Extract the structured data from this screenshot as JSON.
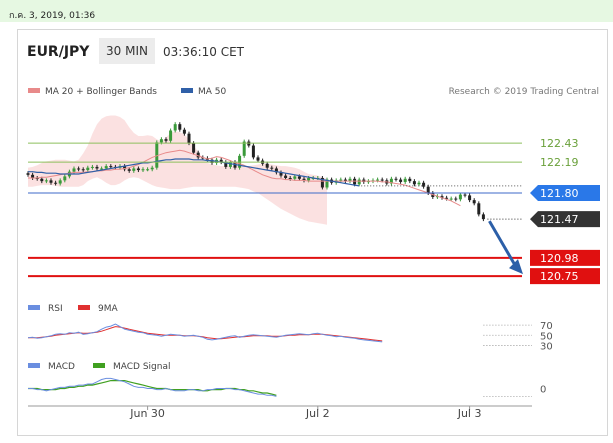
{
  "top_bar": {
    "date_text": "ก.ค. 3, 2019, 01:36"
  },
  "header": {
    "symbol": "EUR/JPY",
    "timeframe": "30 MIN",
    "time": "03:36:10 CET"
  },
  "legend": {
    "ma20_label": "MA 20 + Bollinger Bands",
    "ma50_label": "MA 50",
    "research": "Research © 2019 Trading Central",
    "ma20_color": "#e88a8a",
    "ma50_color": "#3060a8"
  },
  "rsi_legend": {
    "rsi": "RSI",
    "ma": "9MA",
    "rsi_color": "#6a8ee0",
    "ma_color": "#e03030"
  },
  "macd_legend": {
    "macd": "MACD",
    "signal": "MACD Signal",
    "macd_color": "#6a8ee0",
    "signal_color": "#40a020"
  },
  "chart_data": [
    {
      "type": "line",
      "subtype": "candlestick",
      "title": "EUR/JPY",
      "ylim": [
        120.6,
        122.95
      ],
      "x_ticks": [
        "Jun 30",
        "Jul 2",
        "Jul 3"
      ],
      "close": [
        122.03,
        121.99,
        121.98,
        121.95,
        121.96,
        121.93,
        121.92,
        121.96,
        122.01,
        122.07,
        122.11,
        122.1,
        122.09,
        122.12,
        122.13,
        122.11,
        122.11,
        122.14,
        122.13,
        122.12,
        122.14,
        122.1,
        122.08,
        122.11,
        122.09,
        122.1,
        122.1,
        122.12,
        122.44,
        122.48,
        122.46,
        122.59,
        122.67,
        122.6,
        122.55,
        122.43,
        122.31,
        122.25,
        122.24,
        122.22,
        122.18,
        122.22,
        122.19,
        122.13,
        122.19,
        122.12,
        122.27,
        122.45,
        122.4,
        122.25,
        122.21,
        122.17,
        122.12,
        122.11,
        122.06,
        122.02,
        121.99,
        121.98,
        122.01,
        121.98,
        121.96,
        121.99,
        121.99,
        121.99,
        121.87,
        121.97,
        121.93,
        121.96,
        121.97,
        121.95,
        121.98,
        121.91,
        121.97,
        121.94,
        121.95,
        121.96,
        121.97,
        121.96,
        121.92,
        121.98,
        121.97,
        121.94,
        121.98,
        121.95,
        121.91,
        121.93,
        121.88,
        121.8,
        121.75,
        121.76,
        121.74,
        121.73,
        121.73,
        121.72,
        121.78,
        121.77,
        121.71,
        121.67,
        121.53,
        121.47
      ],
      "ma20": [
        121.99,
        121.99,
        121.99,
        122.0,
        122.0,
        122.01,
        122.02,
        122.03,
        122.04,
        122.05,
        122.06,
        122.06,
        122.06,
        122.07,
        122.07,
        122.08,
        122.08,
        122.09,
        122.09,
        122.1,
        122.1,
        122.11,
        122.12,
        122.14,
        122.16,
        122.19,
        122.22,
        122.25,
        122.27,
        122.29,
        122.31,
        122.32,
        122.33,
        122.34,
        122.33,
        122.31,
        122.29,
        122.27,
        122.25,
        122.23,
        122.24,
        122.26,
        122.25,
        122.23,
        122.21,
        122.18,
        122.17,
        122.15,
        122.12,
        122.09,
        122.06,
        122.03,
        122.01,
        121.99,
        121.98,
        121.98,
        121.97,
        121.97,
        121.96,
        121.96,
        121.96,
        121.95,
        121.95,
        121.95,
        121.95,
        121.95,
        121.95,
        121.95,
        121.95,
        121.95,
        121.95,
        121.95,
        121.95,
        121.95,
        121.95,
        121.95,
        121.95,
        121.94,
        121.94,
        121.93,
        121.92,
        121.91,
        121.9,
        121.88,
        121.86,
        121.84,
        121.82,
        121.8,
        121.78,
        121.76,
        121.74,
        121.72,
        121.7,
        121.67,
        121.64
      ],
      "ma50": [
        122.07,
        122.07,
        122.06,
        122.06,
        122.05,
        122.05,
        122.05,
        122.04,
        122.04,
        122.04,
        122.04,
        122.04,
        122.05,
        122.06,
        122.07,
        122.08,
        122.09,
        122.1,
        122.11,
        122.12,
        122.13,
        122.14,
        122.15,
        122.16,
        122.17,
        122.18,
        122.18,
        122.19,
        122.2,
        122.21,
        122.22,
        122.22,
        122.23,
        122.23,
        122.23,
        122.23,
        122.22,
        122.22,
        122.22,
        122.21,
        122.21,
        122.2,
        122.19,
        122.18,
        122.17,
        122.16,
        122.15,
        122.14,
        122.13,
        122.12,
        122.11,
        122.1,
        122.09,
        122.08,
        122.07,
        122.06,
        122.05,
        122.04,
        122.03,
        122.02,
        122.01,
        122.0,
        121.99,
        121.98,
        121.97,
        121.96,
        121.95,
        121.94,
        121.93,
        121.92,
        121.91,
        121.9,
        121.89
      ],
      "bb_upper": [
        122.12,
        122.13,
        122.15,
        122.18,
        122.2,
        122.21,
        122.22,
        122.22,
        122.22,
        122.21,
        122.2,
        122.22,
        122.3,
        122.4,
        122.55,
        122.67,
        122.74,
        122.77,
        122.78,
        122.78,
        122.76,
        122.72,
        122.63,
        122.56,
        122.52,
        122.52,
        122.53,
        122.52,
        122.48,
        122.45,
        122.5,
        122.56,
        122.58,
        122.57,
        122.54,
        122.48,
        122.4,
        122.32,
        122.24,
        122.18,
        122.16,
        122.15,
        122.14,
        122.14,
        122.14,
        122.14,
        122.14,
        122.14,
        122.14,
        122.15,
        122.16,
        122.17,
        122.17,
        122.16,
        122.15,
        122.14,
        122.14,
        122.13,
        122.12,
        122.1,
        122.07,
        122.04,
        122.03,
        122.02,
        122.0,
        121.98
      ],
      "bb_lower": [
        121.88,
        121.88,
        121.89,
        121.9,
        121.9,
        121.9,
        121.89,
        121.88,
        121.88,
        121.88,
        121.88,
        121.88,
        121.9,
        121.95,
        121.98,
        122.0,
        121.97,
        121.93,
        121.9,
        121.9,
        121.92,
        121.96,
        121.99,
        122.0,
        121.99,
        121.96,
        121.93,
        121.9,
        121.88,
        121.87,
        121.86,
        121.85,
        121.85,
        121.85,
        121.86,
        121.87,
        121.88,
        121.88,
        121.88,
        121.88,
        121.88,
        121.88,
        121.88,
        121.88,
        121.88,
        121.88,
        121.87,
        121.86,
        121.85,
        121.82,
        121.8,
        121.76,
        121.72,
        121.68,
        121.64,
        121.6,
        121.57,
        121.54,
        121.51,
        121.48,
        121.46,
        121.44,
        121.43,
        121.42,
        121.41,
        121.4
      ],
      "levels": [
        {
          "value": 122.43,
          "label": "122.43",
          "style": "resistance"
        },
        {
          "value": 122.19,
          "label": "122.19",
          "style": "resistance"
        },
        {
          "value": 121.8,
          "label": "121.80",
          "style": "pivot"
        },
        {
          "value": 121.47,
          "label": "121.47",
          "style": "last"
        },
        {
          "value": 120.98,
          "label": "120.98",
          "style": "target"
        },
        {
          "value": 120.75,
          "label": "120.75",
          "style": "target"
        }
      ],
      "colors": {
        "up": "#3a9a3a",
        "down": "#222222",
        "resistance": "#8cbf5c",
        "pivot": "#3c6ac8",
        "pivot_tag": "#2a78e8",
        "last_tag": "#333333",
        "target": "#e01010",
        "arrow": "#2c5fa8",
        "band": "#f7c8c8"
      }
    },
    {
      "type": "line",
      "title": "RSI",
      "ylim": [
        25,
        80
      ],
      "ticks": [
        "70",
        "50",
        "30"
      ],
      "tick_values": [
        70,
        50,
        30
      ],
      "rsi": [
        45,
        46,
        44,
        45,
        47,
        49,
        52,
        53,
        52,
        55,
        54,
        56,
        52,
        53,
        55,
        57,
        62,
        66,
        68,
        72,
        67,
        62,
        60,
        58,
        56,
        55,
        52,
        51,
        50,
        48,
        50,
        52,
        51,
        50,
        48,
        49,
        50,
        48,
        46,
        42,
        41,
        42,
        44,
        46,
        48,
        49,
        46,
        48,
        50,
        51,
        50,
        49,
        48,
        47,
        46,
        48,
        50,
        51,
        52,
        53,
        52,
        51,
        53,
        54,
        52,
        50,
        49,
        47,
        48,
        46,
        45,
        44,
        42,
        41,
        40,
        39,
        38,
        37
      ],
      "ma9": [
        45,
        45,
        45,
        46,
        47,
        48,
        50,
        51,
        52,
        53,
        54,
        55,
        54,
        54,
        55,
        56,
        58,
        61,
        64,
        67,
        66,
        64,
        62,
        60,
        58,
        56,
        54,
        53,
        52,
        51,
        50,
        50,
        50,
        50,
        49,
        49,
        49,
        48,
        47,
        45,
        44,
        43,
        43,
        44,
        45,
        46,
        47,
        47,
        48,
        49,
        49,
        49,
        49,
        48,
        48,
        48,
        49,
        50,
        50,
        51,
        51,
        51,
        52,
        52,
        52,
        51,
        50,
        49,
        48,
        47,
        46,
        45,
        44,
        43,
        42,
        41,
        40,
        39
      ]
    },
    {
      "type": "line",
      "title": "MACD",
      "ylim": [
        -0.12,
        0.12
      ],
      "ticks": [
        "0"
      ],
      "tick_values": [
        0
      ],
      "macd": [
        0.0,
        0.0,
        -0.01,
        -0.01,
        -0.02,
        -0.01,
        0.0,
        0.01,
        0.01,
        0.02,
        0.02,
        0.03,
        0.03,
        0.04,
        0.04,
        0.06,
        0.08,
        0.09,
        0.09,
        0.08,
        0.07,
        0.06,
        0.04,
        0.02,
        0.01,
        0.01,
        0.0,
        0.0,
        -0.01,
        -0.01,
        0.0,
        -0.01,
        -0.02,
        -0.02,
        -0.02,
        -0.01,
        -0.01,
        -0.02,
        -0.02,
        -0.01,
        -0.01,
        0.0,
        0.0,
        0.0,
        0.0,
        -0.01,
        -0.01,
        -0.02,
        -0.03,
        -0.04,
        -0.05,
        -0.05,
        -0.06,
        -0.06,
        -0.07
      ],
      "signal": [
        0.0,
        0.0,
        0.0,
        -0.01,
        -0.01,
        -0.01,
        -0.01,
        0.0,
        0.0,
        0.01,
        0.01,
        0.02,
        0.02,
        0.03,
        0.03,
        0.04,
        0.05,
        0.06,
        0.07,
        0.07,
        0.07,
        0.07,
        0.06,
        0.05,
        0.04,
        0.03,
        0.02,
        0.01,
        0.0,
        0.0,
        0.0,
        -0.01,
        -0.01,
        -0.01,
        -0.01,
        -0.01,
        -0.01,
        -0.01,
        -0.02,
        -0.02,
        -0.01,
        -0.01,
        -0.01,
        0.0,
        0.0,
        0.0,
        -0.01,
        -0.01,
        -0.02,
        -0.02,
        -0.03,
        -0.04,
        -0.04,
        -0.05,
        -0.06
      ]
    }
  ]
}
